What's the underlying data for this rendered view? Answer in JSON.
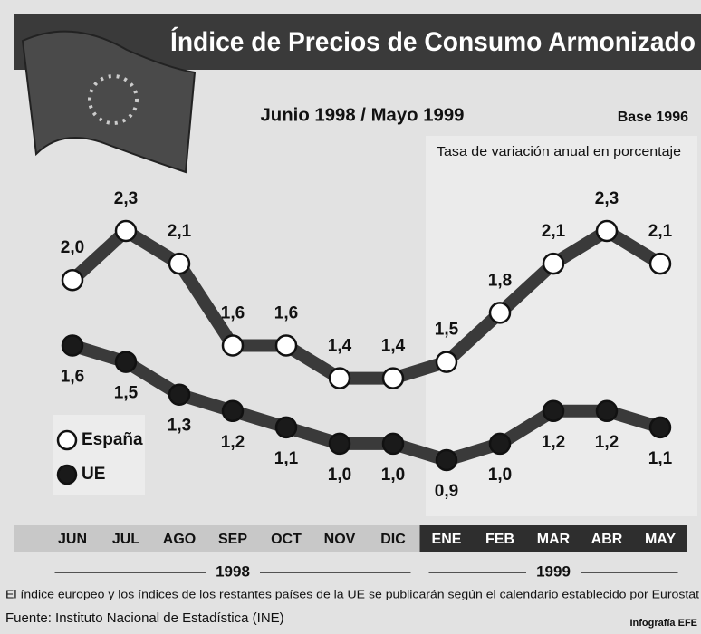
{
  "chart_data": {
    "type": "line",
    "title": "Índice de Precios de Consumo Armonizado",
    "subtitle": "Junio 1998 / Mayo 1999",
    "base_note": "Base 1996",
    "y_label": "Tasa de variación anual en porcentaje",
    "category_groups": [
      {
        "label": "1998",
        "categories": [
          "JUN",
          "JUL",
          "AGO",
          "SEP",
          "OCT",
          "NOV",
          "DIC"
        ]
      },
      {
        "label": "1999",
        "categories": [
          "ENE",
          "FEB",
          "MAR",
          "ABR",
          "MAY"
        ]
      }
    ],
    "series": [
      {
        "name": "España",
        "color": "#ffffff",
        "values": [
          2.0,
          2.3,
          2.1,
          1.6,
          1.6,
          1.4,
          1.4,
          1.5,
          1.8,
          2.1,
          2.3,
          2.1
        ],
        "value_labels": [
          "2,0",
          "2,3",
          "2,1",
          "1,6",
          "1,6",
          "1,4",
          "1,4",
          "1,5",
          "1,8",
          "2,1",
          "2,3",
          "2,1"
        ]
      },
      {
        "name": "UE",
        "color": "#1a1a1a",
        "values": [
          1.6,
          1.5,
          1.3,
          1.2,
          1.1,
          1.0,
          1.0,
          0.9,
          1.0,
          1.2,
          1.2,
          1.1
        ],
        "value_labels": [
          "1,6",
          "1,5",
          "1,3",
          "1,2",
          "1,1",
          "1,0",
          "1,0",
          "0,9",
          "1,0",
          "1,2",
          "1,2",
          "1,1"
        ]
      }
    ],
    "footnote": "El índice europeo y los índices de los restantes países de la UE se publicarán según el calendario establecido por Eurostat",
    "source": "Fuente: Instituto Nacional de Estadística (INE)",
    "credit": "Infografía EFE"
  }
}
